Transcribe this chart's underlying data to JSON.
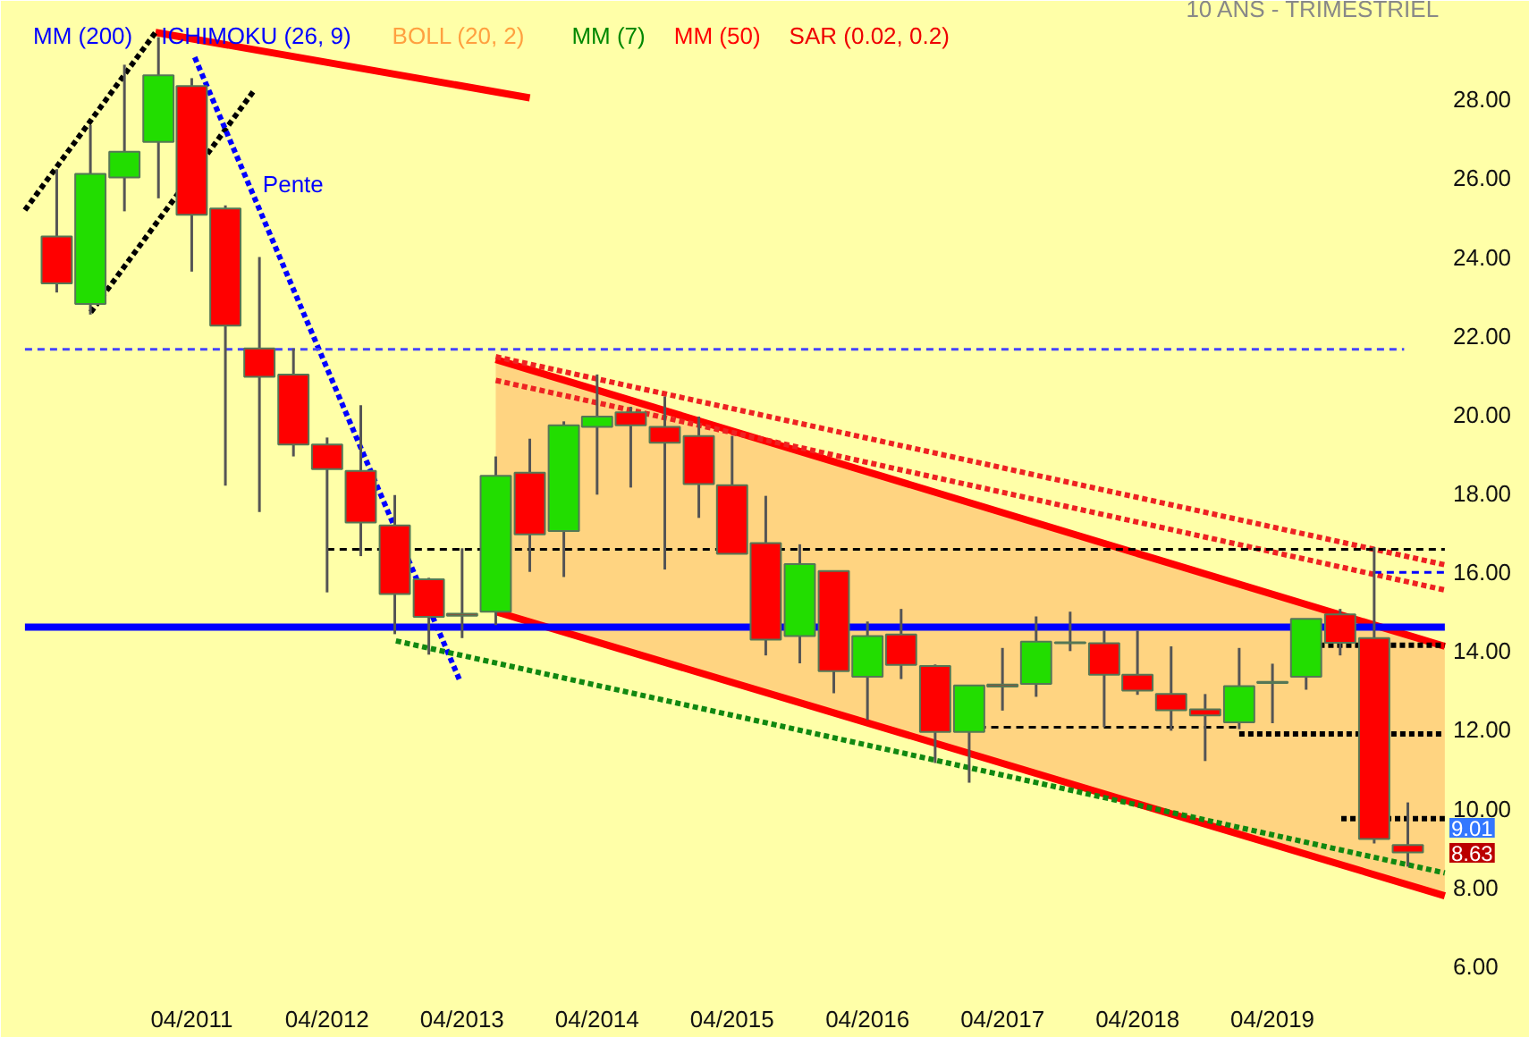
{
  "chart_data": {
    "type": "candlestick",
    "subtitle": "10 ANS - TRIMESTRIEL",
    "annotations": [
      "MM (200)",
      "ICHIMOKU (26, 9)",
      "BOLL (20, 2)",
      "MM (7)",
      "MM (50)",
      "SAR (0.02, 0.2)",
      "9.01",
      "8.63",
      {
        "text": "Pente",
        "x": "2011-10-10",
        "y": 25.5
      }
    ],
    "x": [
      "2010-04",
      "2010-07",
      "2010-10",
      "2011-01",
      "2011-04",
      "2011-07",
      "2011-10",
      "2012-01",
      "2012-04",
      "2012-07",
      "2012-10",
      "2013-01",
      "2013-04",
      "2013-07",
      "2013-10",
      "2014-01",
      "2014-04",
      "2014-07",
      "2014-10",
      "2015-01",
      "2015-04",
      "2015-07",
      "2015-10",
      "2016-01",
      "2016-04",
      "2016-07",
      "2016-10",
      "2017-01",
      "2017-04",
      "2017-07",
      "2017-10",
      "2018-01",
      "2018-04",
      "2018-07",
      "2018-10",
      "2019-01",
      "2019-04",
      "2019-07",
      "2019-10",
      "2020-01",
      "2020-04"
    ],
    "ohlc": [
      [
        24.52,
        26.23,
        23.1,
        23.33
      ],
      [
        22.81,
        27.35,
        22.54,
        26.11
      ],
      [
        26.02,
        28.88,
        25.16,
        26.67
      ],
      [
        26.92,
        29.58,
        25.49,
        28.61
      ],
      [
        28.34,
        28.54,
        23.63,
        25.07
      ],
      [
        25.23,
        25.31,
        18.2,
        22.26
      ],
      [
        21.68,
        24.0,
        17.53,
        20.96
      ],
      [
        21.02,
        21.68,
        18.94,
        19.24
      ],
      [
        19.24,
        19.42,
        15.49,
        18.62
      ],
      [
        18.57,
        20.24,
        16.41,
        17.26
      ],
      [
        17.19,
        17.96,
        14.43,
        15.45
      ],
      [
        15.82,
        15.86,
        13.91,
        14.87
      ],
      [
        14.95,
        16.61,
        14.33,
        14.9
      ],
      [
        15.0,
        18.94,
        14.66,
        18.45
      ],
      [
        18.53,
        19.39,
        16.01,
        16.96
      ],
      [
        17.05,
        19.83,
        15.88,
        19.73
      ],
      [
        19.69,
        21.02,
        17.97,
        19.95
      ],
      [
        20.06,
        20.2,
        18.15,
        19.73
      ],
      [
        19.69,
        20.46,
        16.07,
        19.29
      ],
      [
        19.46,
        19.95,
        17.38,
        18.24
      ],
      [
        18.21,
        19.46,
        16.47,
        16.47
      ],
      [
        16.74,
        17.94,
        13.89,
        14.29
      ],
      [
        14.38,
        16.71,
        13.69,
        16.21
      ],
      [
        16.03,
        16.03,
        12.93,
        13.49
      ],
      [
        13.35,
        14.75,
        12.25,
        14.38
      ],
      [
        14.42,
        15.07,
        13.29,
        13.65
      ],
      [
        13.62,
        13.66,
        11.16,
        11.95
      ],
      [
        11.95,
        13.13,
        10.66,
        13.13
      ],
      [
        13.15,
        14.08,
        12.49,
        13.1
      ],
      [
        13.17,
        14.88,
        12.84,
        14.24
      ],
      [
        14.22,
        15.0,
        14.0,
        14.2
      ],
      [
        14.2,
        14.52,
        12.07,
        13.4
      ],
      [
        13.4,
        14.52,
        12.89,
        13.0
      ],
      [
        12.91,
        14.12,
        11.98,
        12.5
      ],
      [
        12.52,
        12.91,
        11.21,
        12.37
      ],
      [
        12.19,
        14.08,
        12.02,
        13.11
      ],
      [
        13.19,
        13.68,
        12.17,
        13.22
      ],
      [
        13.35,
        14.82,
        13.02,
        14.82
      ],
      [
        14.93,
        15.07,
        13.89,
        14.21
      ],
      [
        14.33,
        16.64,
        9.12,
        9.23
      ],
      [
        9.08,
        10.16,
        8.53,
        8.89
      ]
    ],
    "series": [
      {
        "type": "line",
        "color": "#ff0000",
        "line_style": "solid",
        "x": [
          "2013-07-01",
          "2020-07-10"
        ],
        "values": [
          15.0,
          7.79
        ],
        "lower": [
          15.0,
          7.79
        ],
        "upper": [
          21.4,
          14.12
        ]
      },
      {
        "type": "line",
        "color": "#ff0000",
        "line_style": "solid",
        "x": [
          "2013-07-01",
          "2020-07-10"
        ],
        "values": [
          21.4,
          14.12
        ]
      },
      {
        "type": "line",
        "color": "#ff0000",
        "line_style": "solid",
        "x": [
          "2010-12-24",
          "2013-10-01"
        ],
        "values": [
          29.7,
          28.04
        ]
      },
      {
        "type": "line",
        "color": "#000000",
        "line_style": "dotted",
        "x": [
          "2010-01-05",
          "2010-12-24"
        ],
        "values": [
          25.19,
          29.7
        ]
      },
      {
        "type": "line",
        "color": "#000000",
        "line_style": "dotted",
        "x": [
          "2010-07-02",
          "2011-09-16"
        ],
        "values": [
          22.6,
          28.22
        ]
      },
      {
        "type": "line",
        "color": "#0000ff",
        "line_style": "dotted",
        "x": [
          "2011-04-09",
          "2013-03-25"
        ],
        "values": [
          29.07,
          13.27
        ]
      },
      {
        "type": "line",
        "color": "#ee2222",
        "line_style": "dotted",
        "x": [
          "2013-07-01",
          "2020-07-10"
        ],
        "values": [
          21.47,
          16.19
        ]
      },
      {
        "type": "line",
        "color": "#ee2222",
        "line_style": "dotted",
        "x": [
          "2013-07-01",
          "2020-07-10"
        ],
        "values": [
          20.87,
          15.55
        ]
      },
      {
        "type": "line",
        "color": "#118811",
        "line_style": "dotted",
        "x": [
          "2012-10-04",
          "2020-07-10"
        ],
        "values": [
          14.26,
          8.37
        ]
      },
      {
        "type": "line",
        "color": "#4444ff",
        "line_style": "dashed",
        "x": [
          "2010-01-05",
          "2020-03-22"
        ],
        "values": [
          21.66,
          21.66
        ]
      },
      {
        "type": "line",
        "color": "#0000ff",
        "line_style": "solid",
        "x": [
          "2010-01-05",
          "2020-07-10"
        ],
        "values": [
          14.61,
          14.61
        ]
      },
      {
        "type": "line",
        "color": "#000000",
        "line_style": "dashed",
        "x": [
          "2012-04-01",
          "2020-07-10"
        ],
        "values": [
          16.58,
          16.58
        ]
      },
      {
        "type": "line",
        "color": "#000000",
        "line_style": "dashed",
        "x": [
          "2016-11-20",
          "2019-01-01"
        ],
        "values": [
          12.07,
          12.07
        ]
      },
      {
        "type": "line",
        "color": "#000000",
        "line_style": "dotted",
        "x": [
          "2019-05-25",
          "2020-07-10"
        ],
        "values": [
          14.15,
          14.15
        ]
      },
      {
        "type": "line",
        "color": "#000000",
        "line_style": "dotted",
        "x": [
          "2019-01-01",
          "2020-07-10"
        ],
        "values": [
          11.9,
          11.9
        ]
      },
      {
        "type": "line",
        "color": "#000000",
        "line_style": "dotted",
        "x": [
          "2019-10-04",
          "2020-07-10"
        ],
        "values": [
          9.75,
          9.75
        ]
      },
      {
        "type": "line",
        "color": "#0000ff",
        "line_style": "dashed",
        "x": [
          "2020-01-01",
          "2020-07-10"
        ],
        "values": [
          16.0,
          16.0
        ]
      }
    ],
    "xlim": [
      "2009-11-01",
      "2021-02-25"
    ],
    "xticks": [
      {
        "value": "2011-04",
        "label": "04/2011"
      },
      {
        "value": "2012-04",
        "label": "04/2012"
      },
      {
        "value": "2013-04",
        "label": "04/2013"
      },
      {
        "value": "2014-04",
        "label": "04/2014"
      },
      {
        "value": "2015-04",
        "label": "04/2015"
      },
      {
        "value": "2016-04",
        "label": "04/2016"
      },
      {
        "value": "2017-04",
        "label": "04/2017"
      },
      {
        "value": "2018-04",
        "label": "04/2018"
      },
      {
        "value": "2019-04",
        "label": "04/2019"
      }
    ],
    "ylim": [
      5.5,
      30.5
    ],
    "yticks": [
      {
        "value": 6,
        "label": "6.00"
      },
      {
        "value": 8,
        "label": "8.00"
      },
      {
        "value": 10,
        "label": "10.00"
      },
      {
        "value": 12,
        "label": "12.00"
      },
      {
        "value": 14,
        "label": "14.00"
      },
      {
        "value": 16,
        "label": "16.00"
      },
      {
        "value": 18,
        "label": "18.00"
      },
      {
        "value": 20,
        "label": "20.00"
      },
      {
        "value": 22,
        "label": "22.00"
      },
      {
        "value": 24,
        "label": "24.00"
      },
      {
        "value": 26,
        "label": "26.00"
      },
      {
        "value": 28,
        "label": "28.00"
      }
    ],
    "grid": false
  }
}
